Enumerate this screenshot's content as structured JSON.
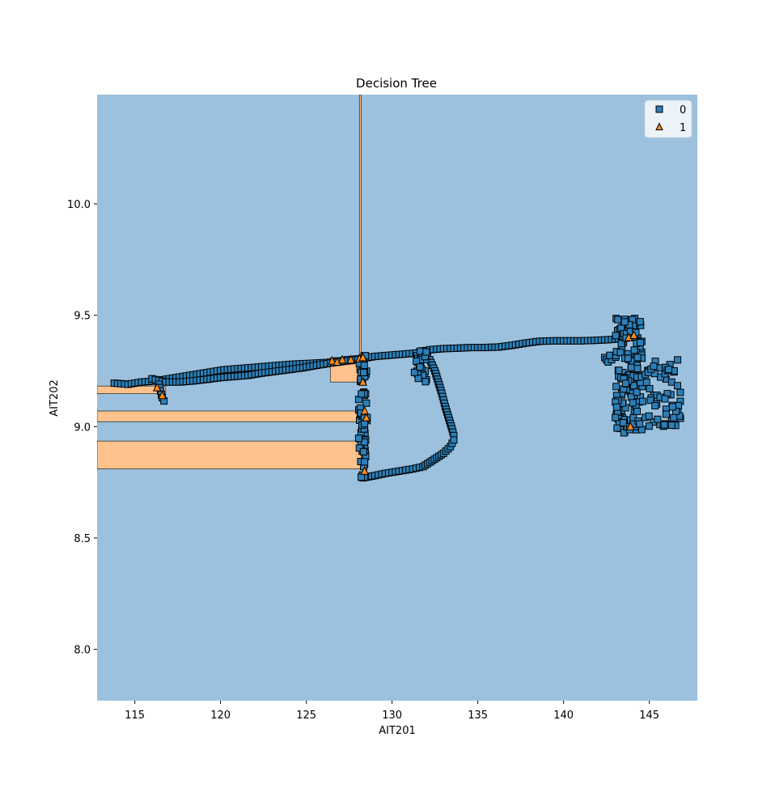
{
  "chart_data": {
    "type": "scatter",
    "title": "Decision Tree",
    "xlabel": "AIT201",
    "ylabel": "AIT202",
    "xlim": [
      112.8,
      147.8
    ],
    "ylim": [
      7.77,
      10.49
    ],
    "xticks": [
      115,
      120,
      125,
      130,
      135,
      140,
      145
    ],
    "yticks": [
      8.0,
      8.5,
      9.0,
      9.5,
      10.0
    ],
    "grid": false,
    "legend_position": "top-right",
    "colors": {
      "region_0": "#9bc1de",
      "region_1": "#ffc28c",
      "class_0_marker": "#2c7fb8",
      "class_1_marker": "#ff8c1a",
      "boundary": "#333333"
    },
    "decision_regions_class1": [
      {
        "x": [
          112.8,
          128.2
        ],
        "y": [
          8.81,
          8.935
        ]
      },
      {
        "x": [
          112.8,
          128.2
        ],
        "y": [
          9.022,
          9.07
        ]
      },
      {
        "x": [
          112.8,
          116.8
        ],
        "y": [
          9.148,
          9.182
        ]
      },
      {
        "x": [
          126.4,
          128.2
        ],
        "y": [
          9.2,
          9.31
        ]
      },
      {
        "x": [
          128.1,
          128.2
        ],
        "y": [
          9.31,
          10.49
        ]
      }
    ],
    "series": [
      {
        "name": "0",
        "marker": "square",
        "paths": [
          [
            [
              113.8,
              9.195
            ],
            [
              114.6,
              9.19
            ],
            [
              115.4,
              9.2
            ],
            [
              116.2,
              9.205
            ],
            [
              117,
              9.215
            ],
            [
              117.8,
              9.225
            ],
            [
              118.6,
              9.235
            ],
            [
              119.4,
              9.245
            ],
            [
              120.2,
              9.255
            ],
            [
              121,
              9.26
            ],
            [
              121.8,
              9.265
            ],
            [
              122.6,
              9.27
            ],
            [
              123.4,
              9.275
            ],
            [
              124.2,
              9.28
            ],
            [
              125,
              9.283
            ],
            [
              125.8,
              9.286
            ],
            [
              126.6,
              9.29
            ],
            [
              127.4,
              9.3
            ],
            [
              128.2,
              9.305
            ],
            [
              129,
              9.315
            ],
            [
              129.8,
              9.32
            ],
            [
              130.6,
              9.325
            ],
            [
              131.4,
              9.33
            ],
            [
              132.2,
              9.345
            ],
            [
              133,
              9.35
            ],
            [
              133.8,
              9.352
            ],
            [
              134.6,
              9.355
            ],
            [
              135.4,
              9.355
            ],
            [
              136.2,
              9.357
            ],
            [
              137,
              9.365
            ],
            [
              137.8,
              9.375
            ],
            [
              138.6,
              9.383
            ],
            [
              139.4,
              9.385
            ],
            [
              140.2,
              9.385
            ],
            [
              141,
              9.385
            ],
            [
              141.8,
              9.387
            ],
            [
              142.6,
              9.39
            ],
            [
              143.4,
              9.395
            ]
          ],
          [
            [
              116,
              9.215
            ],
            [
              116.8,
              9.2
            ],
            [
              117.6,
              9.2
            ],
            [
              118.4,
              9.205
            ],
            [
              119.2,
              9.212
            ],
            [
              120,
              9.22
            ],
            [
              120.8,
              9.225
            ],
            [
              121.6,
              9.23
            ],
            [
              122.4,
              9.24
            ],
            [
              123.2,
              9.248
            ],
            [
              124,
              9.256
            ],
            [
              124.8,
              9.264
            ],
            [
              125.6,
              9.275
            ],
            [
              126.4,
              9.285
            ],
            [
              127.2,
              9.293
            ],
            [
              128,
              9.3
            ]
          ],
          [
            [
              116.4,
              9.19
            ],
            [
              116.5,
              9.16
            ],
            [
              116.6,
              9.13
            ],
            [
              116.7,
              9.115
            ]
          ],
          [
            [
              131.4,
              9.33
            ],
            [
              131.6,
              9.28
            ],
            [
              131.8,
              9.24
            ],
            [
              132,
              9.21
            ]
          ],
          [
            [
              131.8,
              9.34
            ],
            [
              132.2,
              9.3
            ],
            [
              132.5,
              9.25
            ],
            [
              132.7,
              9.2
            ],
            [
              132.9,
              9.15
            ],
            [
              133.1,
              9.09
            ],
            [
              133.3,
              9.04
            ],
            [
              133.5,
              8.99
            ],
            [
              133.6,
              8.96
            ]
          ],
          [
            [
              128.3,
              8.77
            ],
            [
              129,
              8.78
            ],
            [
              129.6,
              8.79
            ],
            [
              130.4,
              8.8
            ],
            [
              131.2,
              8.81
            ],
            [
              131.8,
              8.82
            ],
            [
              132.2,
              8.84
            ],
            [
              132.6,
              8.86
            ],
            [
              133,
              8.88
            ],
            [
              133.4,
              8.91
            ],
            [
              133.6,
              8.94
            ]
          ],
          [
            [
              142.4,
              9.31
            ],
            [
              142.6,
              9.29
            ],
            [
              142.8,
              9.3
            ],
            [
              142.7,
              9.32
            ]
          ]
        ],
        "clusters": [
          {
            "x": [
              128.05,
              128.55
            ],
            "y": [
              8.77,
              9.32
            ],
            "n": 70
          },
          {
            "x": [
              143.0,
              144.6
            ],
            "y": [
              8.97,
              9.49
            ],
            "n": 150
          },
          {
            "x": [
              144.6,
              146.9
            ],
            "y": [
              9.0,
              9.3
            ],
            "n": 60
          },
          {
            "x": [
              131.3,
              132.0
            ],
            "y": [
              9.2,
              9.34
            ],
            "n": 18
          }
        ]
      },
      {
        "name": "1",
        "marker": "triangle",
        "points": [
          [
            116.3,
            9.175
          ],
          [
            116.6,
            9.14
          ],
          [
            126.5,
            9.295
          ],
          [
            126.8,
            9.29
          ],
          [
            127.1,
            9.3
          ],
          [
            127.6,
            9.3
          ],
          [
            128.1,
            9.305
          ],
          [
            128.3,
            9.31
          ],
          [
            128.3,
            9.2
          ],
          [
            128.4,
            9.07
          ],
          [
            128.5,
            9.04
          ],
          [
            128.4,
            8.8
          ],
          [
            143.8,
            9.4
          ],
          [
            144.1,
            9.41
          ],
          [
            143.9,
            9.0
          ]
        ]
      }
    ]
  }
}
